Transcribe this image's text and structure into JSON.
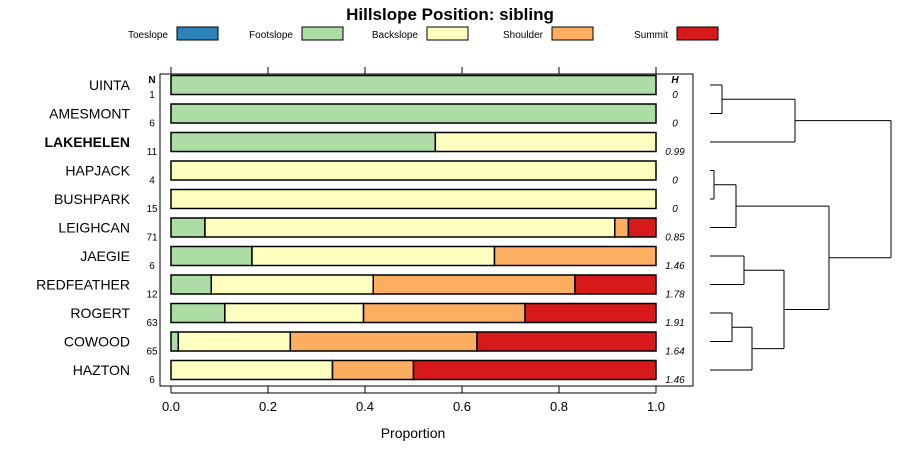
{
  "chart_data": {
    "type": "bar",
    "stacked": true,
    "orientation": "horizontal",
    "title": "Hillslope Position: sibling",
    "xlabel": "Proportion",
    "xlim": [
      0,
      1
    ],
    "xticks": [
      "0.0",
      "0.2",
      "0.4",
      "0.6",
      "0.8",
      "1.0"
    ],
    "n_header": "N",
    "h_header": "H",
    "highlight": "LAKEHELEN",
    "series": [
      {
        "name": "Toeslope",
        "color": "#2b83ba"
      },
      {
        "name": "Footslope",
        "color": "#abdda4"
      },
      {
        "name": "Backslope",
        "color": "#ffffbf"
      },
      {
        "name": "Shoulder",
        "color": "#fdae61"
      },
      {
        "name": "Summit",
        "color": "#d7191c"
      }
    ],
    "rows": [
      {
        "name": "UINTA",
        "n": "1",
        "h": "0",
        "values": [
          0,
          1.0,
          0,
          0,
          0
        ]
      },
      {
        "name": "AMESMONT",
        "n": "6",
        "h": "0",
        "values": [
          0,
          1.0,
          0,
          0,
          0
        ]
      },
      {
        "name": "LAKEHELEN",
        "n": "11",
        "h": "0.99",
        "values": [
          0,
          0.545,
          0.455,
          0,
          0
        ]
      },
      {
        "name": "HAPJACK",
        "n": "4",
        "h": "0",
        "values": [
          0,
          0,
          1.0,
          0,
          0
        ]
      },
      {
        "name": "BUSHPARK",
        "n": "15",
        "h": "0",
        "values": [
          0,
          0,
          1.0,
          0,
          0
        ]
      },
      {
        "name": "LEIGHCAN",
        "n": "71",
        "h": "0.85",
        "values": [
          0,
          0.07,
          0.845,
          0.028,
          0.057
        ]
      },
      {
        "name": "JAEGIE",
        "n": "6",
        "h": "1.46",
        "values": [
          0,
          0.167,
          0.5,
          0.333,
          0
        ]
      },
      {
        "name": "REDFEATHER",
        "n": "12",
        "h": "1.78",
        "values": [
          0,
          0.083,
          0.334,
          0.416,
          0.167
        ]
      },
      {
        "name": "ROGERT",
        "n": "63",
        "h": "1.91",
        "values": [
          0,
          0.111,
          0.286,
          0.333,
          0.27
        ]
      },
      {
        "name": "COWOOD",
        "n": "65",
        "h": "1.64",
        "values": [
          0,
          0.015,
          0.231,
          0.385,
          0.369
        ]
      },
      {
        "name": "HAZTON",
        "n": "6",
        "h": "1.46",
        "values": [
          0,
          0,
          0.333,
          0.167,
          0.5
        ]
      }
    ]
  }
}
